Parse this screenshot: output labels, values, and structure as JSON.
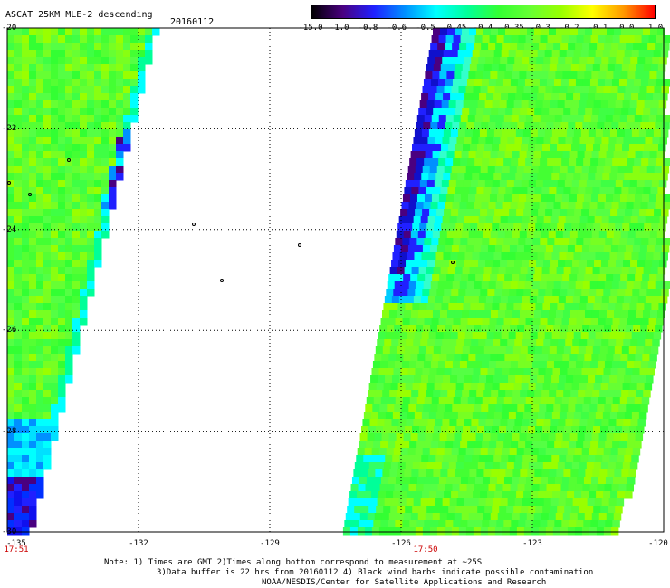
{
  "title": "ASCAT 25KM MLE-2 descending",
  "date": "20160112",
  "colorbar": {
    "labels": [
      "-15.0",
      "-1.0",
      "-0.8",
      "-0.6",
      "-0.5",
      "-0.45",
      "-0.4",
      "-0.35",
      "-0.3",
      "-0.2",
      "-0.1",
      "0.0",
      "1.0"
    ],
    "colors": [
      "#000000",
      "#4a0080",
      "#2020ff",
      "#0090ff",
      "#00ffff",
      "#00ff99",
      "#33ff33",
      "#66ff33",
      "#99ff00",
      "#ffff00",
      "#ff9900",
      "#ff0000"
    ]
  },
  "axes": {
    "lat_labels": [
      "-20",
      "-22",
      "-24",
      "-26",
      "-28",
      "-30"
    ],
    "lon_labels": [
      "-135",
      "-132",
      "-129",
      "-126",
      "-123",
      "-120"
    ]
  },
  "times": [
    "17:51",
    "17:50"
  ],
  "notes": [
    "Note: 1) Times are GMT 2)Times along bottom correspond to measurement at ~25S",
    "3)Data buffer is 22 hrs from 20160112 4) Black wind barbs indicate possible contamination",
    "NOAA/NESDIS/Center for Satellite Applications and Research"
  ],
  "map_data": {
    "lat_range": [
      -30,
      -20
    ],
    "lon_range": [
      -135,
      -120
    ],
    "swaths": [
      "west",
      "east"
    ]
  }
}
